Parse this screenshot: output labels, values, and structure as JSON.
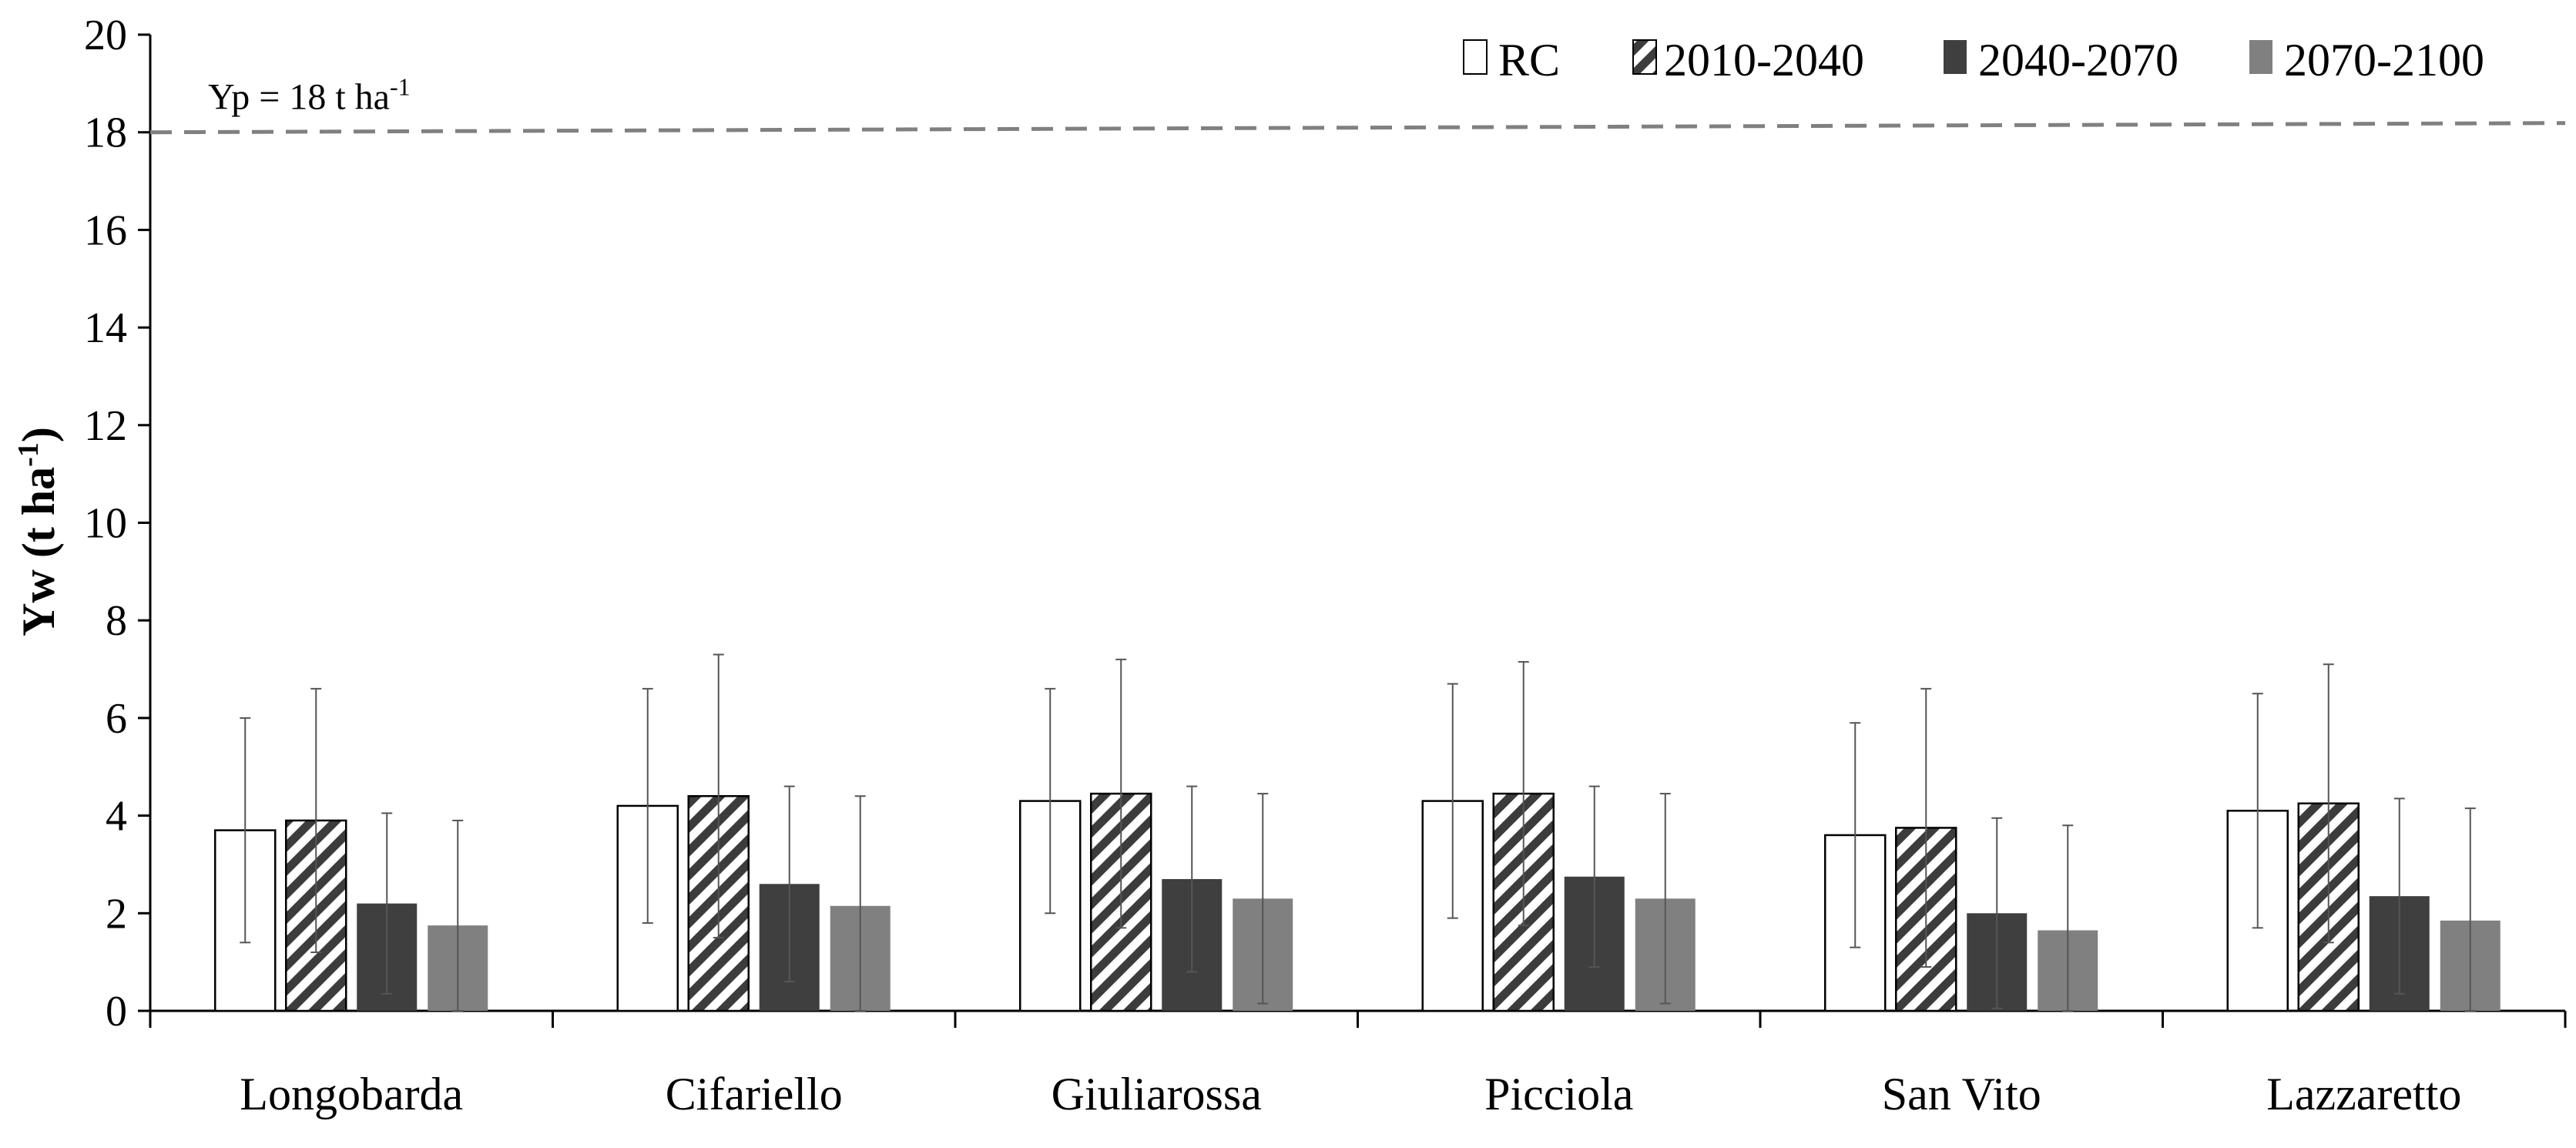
{
  "chart_data": {
    "type": "bar",
    "title": "",
    "xlabel": "",
    "ylabel": "Yw (t ha",
    "ylabel_sup": "-1",
    "ylabel_close": ")",
    "ylim": [
      0,
      20
    ],
    "yticks": [
      "0",
      "2",
      "4",
      "6",
      "8",
      "10",
      "12",
      "14",
      "16",
      "18",
      "20"
    ],
    "categories": [
      "Longobarda",
      "Cifariello",
      "Giuliarossa",
      "Picciola",
      "San Vito",
      "Lazzaretto"
    ],
    "series": [
      {
        "name": "RC",
        "values": [
          3.7,
          4.2,
          4.3,
          4.3,
          3.6,
          4.1
        ],
        "errors": [
          2.3,
          2.4,
          2.3,
          2.4,
          2.3,
          2.4
        ]
      },
      {
        "name": "2010-2040",
        "values": [
          3.9,
          4.4,
          4.45,
          4.45,
          3.75,
          4.25
        ],
        "errors": [
          2.7,
          2.9,
          2.75,
          2.7,
          2.85,
          2.85
        ]
      },
      {
        "name": "2040-2070",
        "values": [
          2.2,
          2.6,
          2.7,
          2.75,
          2.0,
          2.35
        ],
        "errors": [
          1.85,
          2.0,
          1.9,
          1.85,
          1.95,
          2.0
        ]
      },
      {
        "name": "2070-2100",
        "values": [
          1.75,
          2.15,
          2.3,
          2.3,
          1.65,
          1.85
        ],
        "errors": [
          2.15,
          2.25,
          2.15,
          2.15,
          2.15,
          2.3
        ]
      }
    ],
    "reference_line": {
      "value": 18,
      "label": "Yp = 18 t ha",
      "label_sup": "-1"
    },
    "legend_position": "top-right",
    "grid": false
  },
  "colors": {
    "rc_fill": "#ffffff",
    "hatch_dark": "#3c3c3c",
    "series3_fill": "#3f3f3f",
    "series4_fill": "#808080",
    "reference_line": "#808080",
    "axis": "#000000"
  }
}
